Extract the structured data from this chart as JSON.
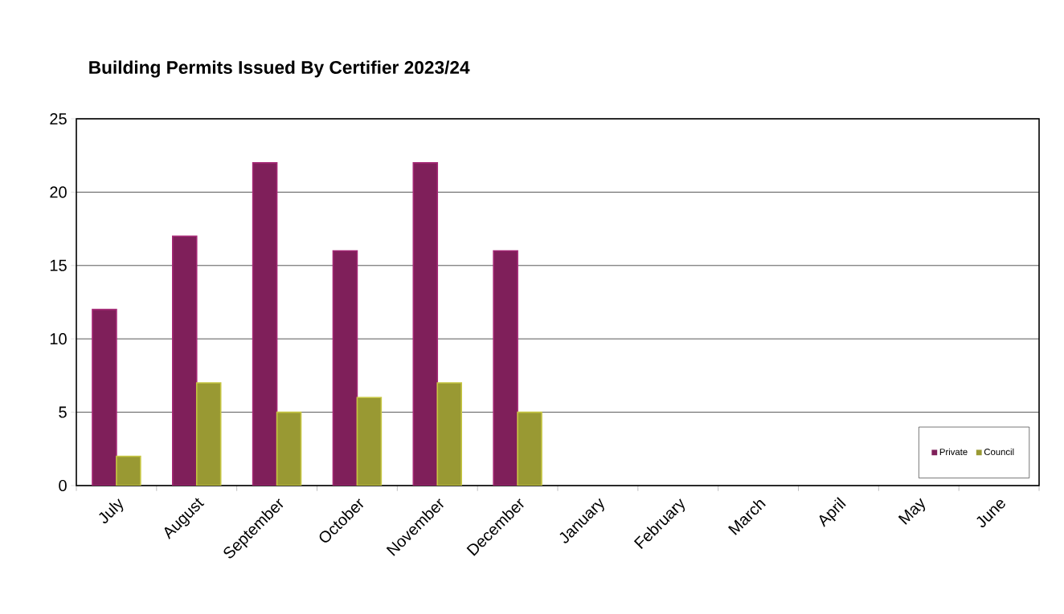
{
  "chart_data": {
    "type": "bar",
    "title": "Building Permits Issued By Certifier 2023/24",
    "categories": [
      "July",
      "August",
      "September",
      "October",
      "November",
      "December",
      "January",
      "February",
      "March",
      "April",
      "May",
      "June"
    ],
    "series": [
      {
        "name": "Private",
        "color": "#7f1f5a",
        "values": [
          12,
          17,
          22,
          16,
          22,
          16,
          null,
          null,
          null,
          null,
          null,
          null
        ]
      },
      {
        "name": "Council",
        "color": "#999933",
        "values": [
          2,
          7,
          5,
          6,
          7,
          5,
          null,
          null,
          null,
          null,
          null,
          null
        ]
      }
    ],
    "ylim": [
      0,
      25
    ],
    "yticks": [
      0,
      5,
      10,
      15,
      20,
      25
    ],
    "grid": "y",
    "legend": "bottom right"
  }
}
